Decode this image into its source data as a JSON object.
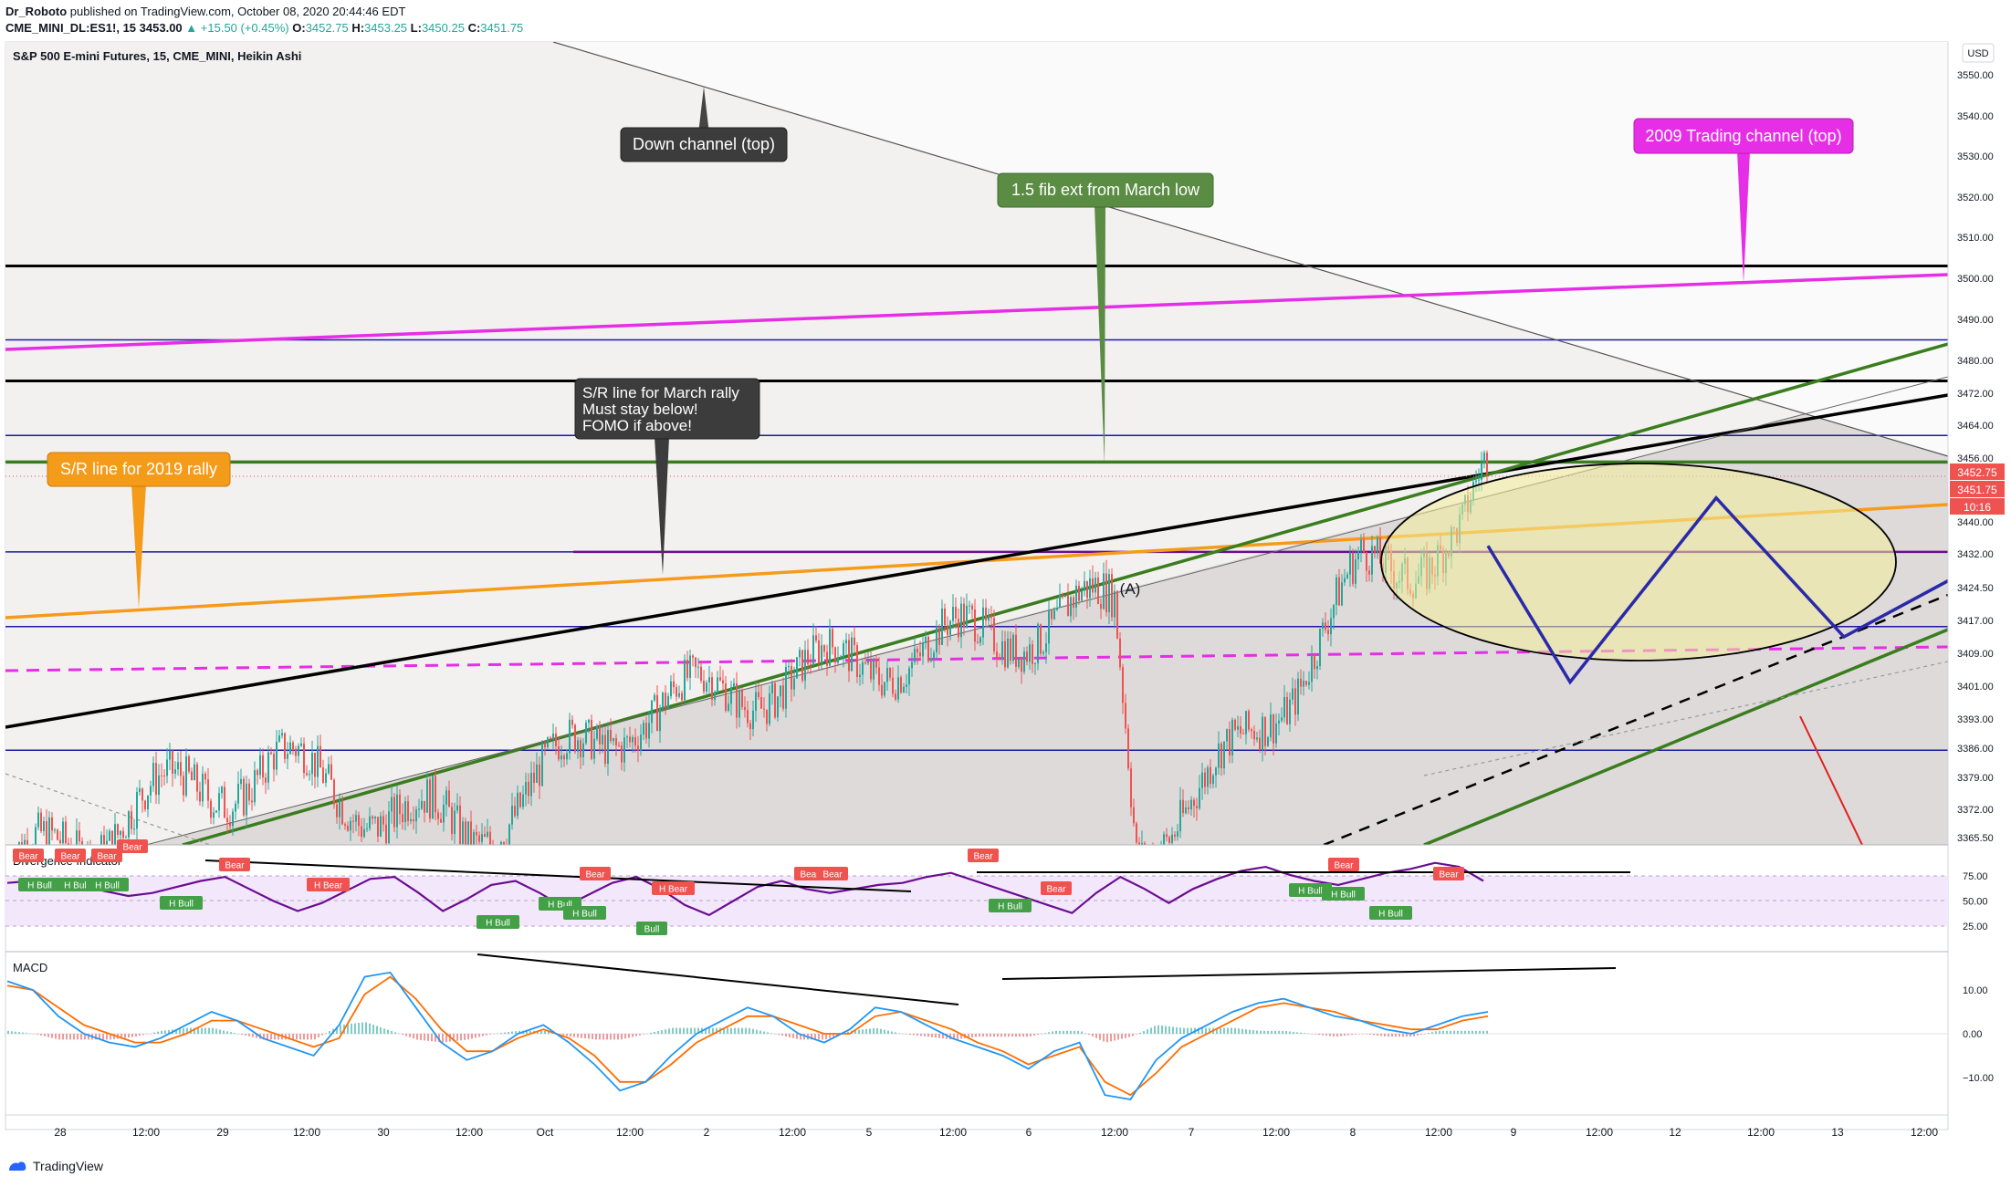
{
  "header": {
    "line1_author": "Dr_Roboto",
    "line1_rest": "published on TradingView.com, October 08, 2020 20:44:46 EDT",
    "symbol": "CME_MINI_DL:ES1!, 15",
    "last": "3453.00",
    "change": "▲ +15.50 (+0.45%)",
    "o_label": "O:",
    "o": "3452.75",
    "h_label": "H:",
    "h": "3453.25",
    "l_label": "L:",
    "l": "3450.25",
    "c_label": "C:",
    "c": "3451.75"
  },
  "chart_title": "S&P 500 E-mini Futures, 15, CME_MINI, Heikin Ashi",
  "currency": "USD",
  "price_badges": {
    "last": "3452.75",
    "close": "3451.75",
    "timer": "10:16"
  },
  "annotations": {
    "down_channel": "Down channel (top)",
    "fib": "1.5 fib ext from March low",
    "trading_2009": "2009 Trading channel (top)",
    "sr_march": [
      "S/R line for March rally",
      "Must stay below!",
      "FOMO if above!"
    ],
    "sr_2019": "S/R line for 2019 rally",
    "wave_a": "(A)"
  },
  "indicators": {
    "divergence_title": "Divergence Indicator",
    "macd_title": "MACD",
    "bear": "Bear",
    "bull": "Bull",
    "h_bull": "H Bull",
    "h_bear": "H Bear"
  },
  "footer": {
    "brand": "TradingView"
  },
  "colors": {
    "green_line": "#3a7d1e",
    "magenta": "#e62ee6",
    "orange": "#f59b1a",
    "blue": "#1a1aa6",
    "black": "#000000",
    "up": "#26a69a",
    "down": "#ef5350",
    "purple": "#6a0d91",
    "macd": "#2196f3",
    "signal": "#ff6d00"
  },
  "chart_data": [
    {
      "type": "line",
      "title": "S&P 500 E-mini Futures, 15, CME_MINI, Heikin Ashi",
      "y_axis": {
        "ticks": [
          3550.0,
          3540.0,
          3530.0,
          3520.0,
          3510.0,
          3500.0,
          3490.0,
          3480.0,
          3472.0,
          3464.0,
          3456.0,
          3448.0,
          3440.0,
          3432.0,
          3424.5,
          3417.0,
          3409.0,
          3401.0,
          3393.0,
          3386.0,
          3379.0,
          3372.0,
          3365.5
        ],
        "tick_labels": [
          "3550.00",
          "3540.00",
          "3530.00",
          "3520.00",
          "3510.00",
          "3500.00",
          "3490.00",
          "3480.00",
          "3472.00",
          "3464.00",
          "3456.00",
          "3448.00",
          "3440.00",
          "3432.00",
          "3424.50",
          "3417.00",
          "3409.00",
          "3401.00",
          "3393.00",
          "3386.00",
          "3379.00",
          "3372.00",
          "3365.50"
        ]
      },
      "x_axis": {
        "tick_labels": [
          "28",
          "12:00",
          "29",
          "12:00",
          "30",
          "12:00",
          "Oct",
          "12:00",
          "2",
          "12:00",
          "5",
          "12:00",
          "6",
          "12:00",
          "7",
          "12:00",
          "8",
          "12:00",
          "9",
          "12:00",
          "12",
          "12:00",
          "13",
          "12:00"
        ]
      },
      "horizontal_levels": [
        3503.0,
        3485.0,
        3475.0,
        3461.5,
        3455.0,
        3432.5,
        3415.5,
        3385.5
      ],
      "price_path": [
        [
          "Sep 28",
          3356
        ],
        [
          "Sep 29",
          3372
        ],
        [
          "Sep 30",
          3382
        ],
        [
          "Oct 1",
          3372
        ],
        [
          "Oct 2",
          3366
        ],
        [
          "Oct 5",
          3395
        ],
        [
          "Oct 6 12:00",
          3420
        ],
        [
          "Oct 6 13:00",
          3365
        ],
        [
          "Oct 7",
          3375
        ],
        [
          "Oct 7 12:00",
          3404
        ],
        [
          "Oct 8",
          3427
        ],
        [
          "Oct 8 12:00",
          3437
        ],
        [
          "Oct 8 20:45",
          3451.75
        ]
      ],
      "projection": [
        [
          "Oct 8 20:45",
          3434
        ],
        [
          "Oct 9 12:00",
          3402
        ],
        [
          "Oct 12 12:00",
          3446
        ],
        [
          "Oct 13",
          3413
        ],
        [
          "Oct 13 12:00",
          3426
        ]
      ]
    },
    {
      "type": "line",
      "title": "Divergence Indicator",
      "y_axis": {
        "ticks": [
          75,
          50,
          25
        ],
        "tick_labels": [
          "75.00",
          "50.00",
          "25.00"
        ]
      },
      "series": [
        {
          "name": "RSI",
          "values": [
            68,
            70,
            72,
            66,
            60,
            55,
            58,
            64,
            70,
            74,
            62,
            50,
            40,
            48,
            60,
            72,
            74,
            58,
            40,
            52,
            66,
            70,
            58,
            44,
            56,
            68,
            74,
            62,
            46,
            36,
            50,
            64,
            70,
            62,
            58,
            62,
            66,
            68,
            74,
            78,
            70,
            62,
            54,
            46,
            38,
            58,
            74,
            62,
            48,
            62,
            72,
            80,
            84,
            76,
            70,
            66,
            72,
            78,
            82,
            88,
            84,
            70
          ]
        }
      ]
    },
    {
      "type": "line",
      "title": "MACD",
      "y_axis": {
        "ticks": [
          10,
          0,
          -10
        ],
        "tick_labels": [
          "10.00",
          "0.00",
          "−10.00"
        ]
      },
      "series": [
        {
          "name": "MACD",
          "values": [
            12,
            10,
            4,
            0,
            -2,
            -3,
            -1,
            2,
            5,
            3,
            -1,
            -3,
            -5,
            2,
            13,
            14,
            6,
            -2,
            -6,
            -4,
            0,
            2,
            -2,
            -7,
            -13,
            -11,
            -5,
            0,
            3,
            6,
            4,
            0,
            -2,
            1,
            6,
            5,
            2,
            -1,
            -3,
            -5,
            -8,
            -4,
            -2,
            -14,
            -15,
            -6,
            -1,
            2,
            5,
            7,
            8,
            6,
            4,
            3,
            1,
            0,
            2,
            4,
            5
          ]
        },
        {
          "name": "Signal",
          "values": [
            11,
            10,
            6,
            2,
            0,
            -2,
            -2,
            0,
            3,
            3,
            1,
            -1,
            -3,
            -1,
            9,
            13,
            8,
            1,
            -4,
            -4,
            -1,
            1,
            -1,
            -5,
            -11,
            -11,
            -7,
            -2,
            1,
            4,
            4,
            2,
            0,
            0,
            4,
            5,
            3,
            1,
            -2,
            -4,
            -7,
            -5,
            -3,
            -11,
            -14,
            -9,
            -3,
            0,
            3,
            6,
            7,
            6,
            5,
            3,
            2,
            1,
            1,
            3,
            4
          ]
        }
      ]
    }
  ]
}
